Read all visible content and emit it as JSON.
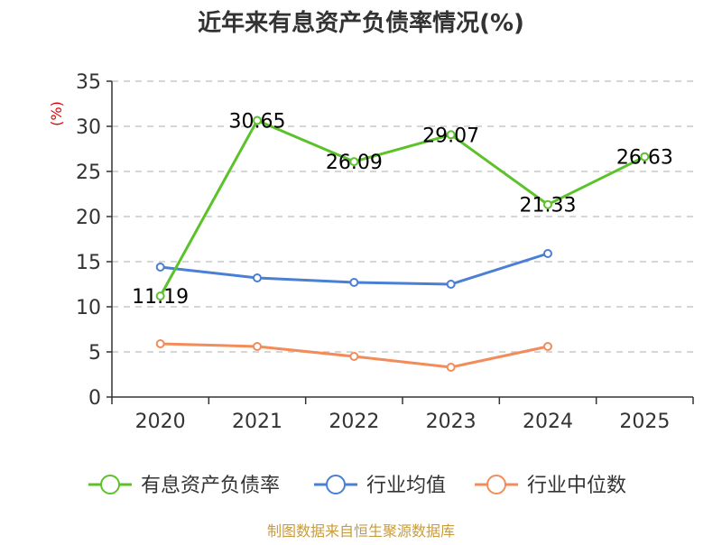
{
  "chart_data": {
    "type": "line",
    "title": "近年来有息资产负债率情况(%)",
    "ylabel": "(%)",
    "xlabel": "",
    "categories": [
      "2020",
      "2021",
      "2022",
      "2023",
      "2024",
      "2025"
    ],
    "ylim": [
      0,
      35
    ],
    "yticks": [
      0,
      5,
      10,
      15,
      20,
      25,
      30,
      35
    ],
    "grid": true,
    "legend_position": "bottom",
    "series": [
      {
        "name": "有息资产负债率",
        "color": "#5cc22a",
        "values": [
          11.19,
          30.65,
          26.09,
          29.07,
          21.33,
          26.63
        ],
        "labels": [
          "11.19",
          "30.65",
          "26.09",
          "29.07",
          "21.33",
          "26.63"
        ]
      },
      {
        "name": "行业均值",
        "color": "#4a7fd6",
        "values": [
          14.4,
          13.2,
          12.7,
          12.5,
          15.9,
          null
        ]
      },
      {
        "name": "行业中位数",
        "color": "#f28c5a",
        "values": [
          5.9,
          5.6,
          4.5,
          3.3,
          5.6,
          null
        ]
      }
    ],
    "source": "制图数据来自恒生聚源数据库"
  }
}
